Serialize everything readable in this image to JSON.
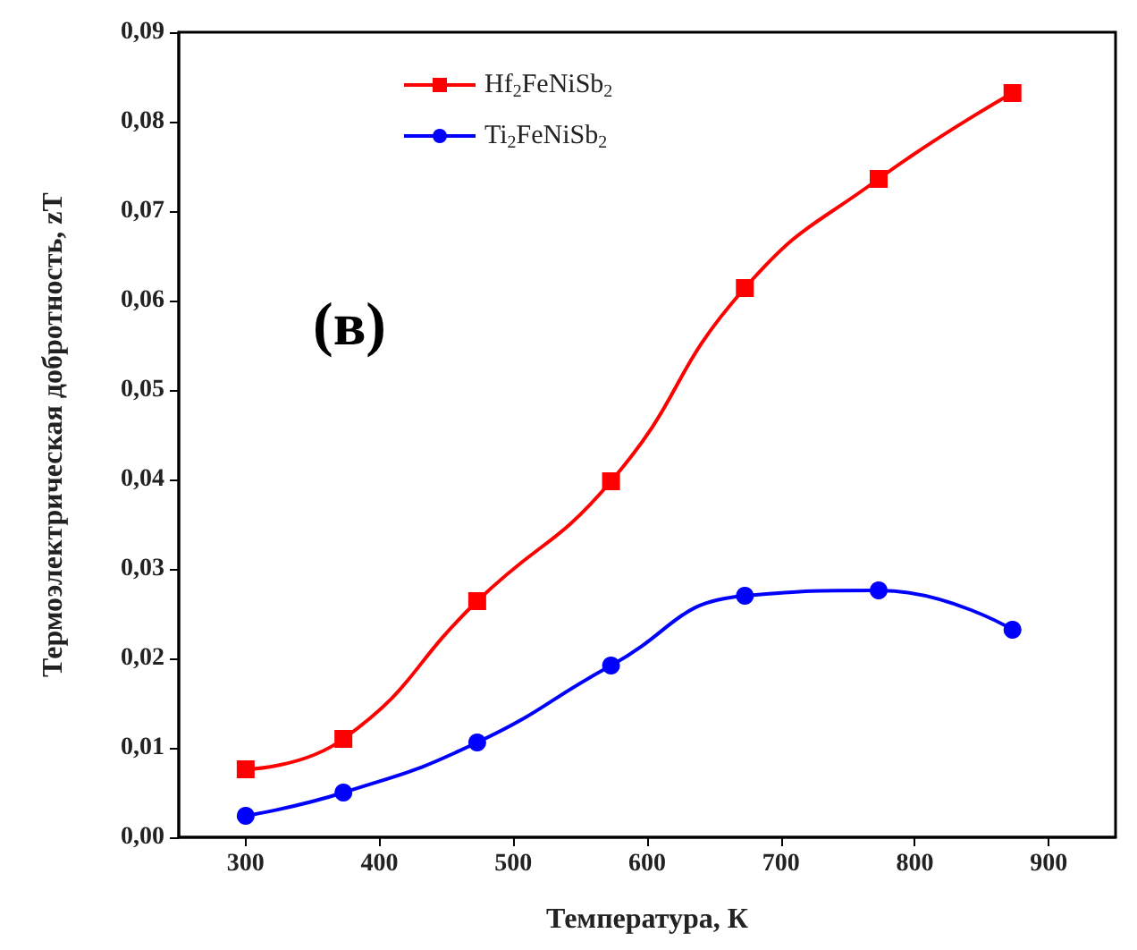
{
  "chart_data": {
    "type": "line",
    "xlabel": "Температура, К",
    "ylabel": "Термоэлектрическая добротность, zT",
    "annotations": [
      "(в)"
    ],
    "x": [
      300,
      373,
      473,
      573,
      673,
      773,
      873
    ],
    "series": [
      {
        "name": "Hf$_{2}$FeNiSb$_{2}$",
        "color": "#ff0000",
        "marker": "square",
        "values": [
          0.0076,
          0.011,
          0.0264,
          0.0398,
          0.0614,
          0.0736,
          0.0832
        ]
      },
      {
        "name": "Ti$_{2}$FeNiSb$_{2}$",
        "color": "#0000ff",
        "marker": "circle",
        "values": [
          0.0024,
          0.005,
          0.0106,
          0.0192,
          0.027,
          0.0276,
          0.0232
        ]
      }
    ],
    "xlim": [
      250,
      950
    ],
    "xticks": [
      300,
      400,
      500,
      600,
      700,
      800,
      900
    ],
    "ylim": [
      0,
      0.09
    ],
    "yticks": [
      {
        "value": 0,
        "label": "0,00"
      },
      {
        "value": 0.01,
        "label": "0,01"
      },
      {
        "value": 0.02,
        "label": "0,02"
      },
      {
        "value": 0.03,
        "label": "0,03"
      },
      {
        "value": 0.04,
        "label": "0,04"
      },
      {
        "value": 0.05,
        "label": "0,05"
      },
      {
        "value": 0.06,
        "label": "0,06"
      },
      {
        "value": 0.07,
        "label": "0,07"
      },
      {
        "value": 0.08,
        "label": "0,08"
      },
      {
        "value": 0.09,
        "label": "0,09"
      }
    ],
    "grid": false,
    "legend": "top",
    "line_style": "solid"
  }
}
